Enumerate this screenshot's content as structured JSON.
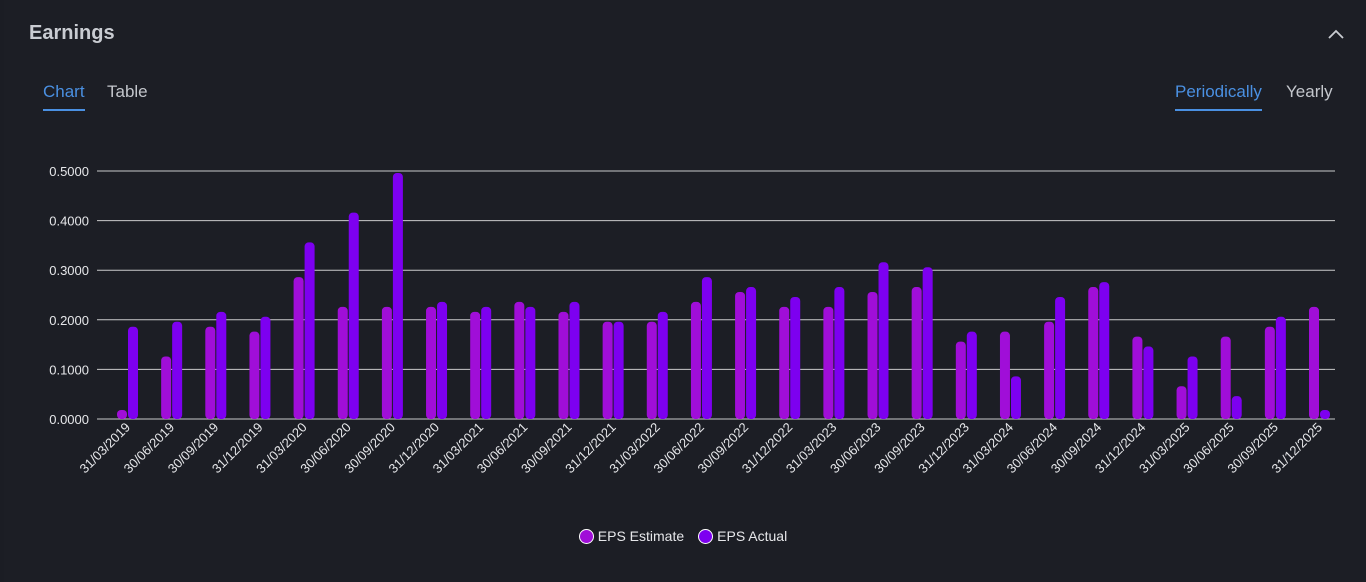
{
  "header": {
    "title": "Earnings"
  },
  "tabs": {
    "chart": "Chart",
    "table": "Table",
    "periodic": "Periodically",
    "yearly": "Yearly"
  },
  "colors": {
    "estimate": "#a00ed8",
    "actual": "#7d00f0",
    "grid": "#e8e8e8",
    "accent": "#4a90e2"
  },
  "icons": {
    "collapse": "chevron-up-icon"
  },
  "chart_data": {
    "type": "bar",
    "title": "Earnings",
    "xlabel": "",
    "ylabel": "",
    "ylim": [
      0,
      0.5
    ],
    "yticks": [
      "0.0000",
      "0.1000",
      "0.2000",
      "0.3000",
      "0.4000",
      "0.5000"
    ],
    "legend_position": "bottom",
    "grid": true,
    "categories": [
      "31/03/2019",
      "30/06/2019",
      "30/09/2019",
      "31/12/2019",
      "31/03/2020",
      "30/06/2020",
      "30/09/2020",
      "31/12/2020",
      "31/03/2021",
      "30/06/2021",
      "30/09/2021",
      "31/12/2021",
      "31/03/2022",
      "30/06/2022",
      "30/09/2022",
      "31/12/2022",
      "31/03/2023",
      "30/06/2023",
      "30/09/2023",
      "31/12/2023",
      "31/03/2024",
      "30/06/2024",
      "30/09/2024",
      "31/12/2024",
      "31/03/2025",
      "30/06/2025",
      "30/09/2025",
      "31/12/2025"
    ],
    "series": [
      {
        "name": "EPS Estimate",
        "values": [
          0.0,
          0.12,
          0.18,
          0.17,
          0.28,
          0.22,
          0.22,
          0.22,
          0.21,
          0.23,
          0.21,
          0.19,
          0.19,
          0.23,
          0.25,
          0.22,
          0.22,
          0.25,
          0.26,
          0.15,
          0.17,
          0.19,
          0.26,
          0.16,
          0.06,
          0.16,
          0.18,
          0.22
        ]
      },
      {
        "name": "EPS Actual",
        "values": [
          0.18,
          0.19,
          0.21,
          0.2,
          0.35,
          0.41,
          0.49,
          0.23,
          0.22,
          0.22,
          0.23,
          0.19,
          0.21,
          0.28,
          0.26,
          0.24,
          0.26,
          0.31,
          0.3,
          0.17,
          0.08,
          0.24,
          0.27,
          0.14,
          0.12,
          0.04,
          0.2,
          0.0
        ]
      }
    ]
  },
  "legend": {
    "estimate": "EPS Estimate",
    "actual": "EPS Actual"
  }
}
